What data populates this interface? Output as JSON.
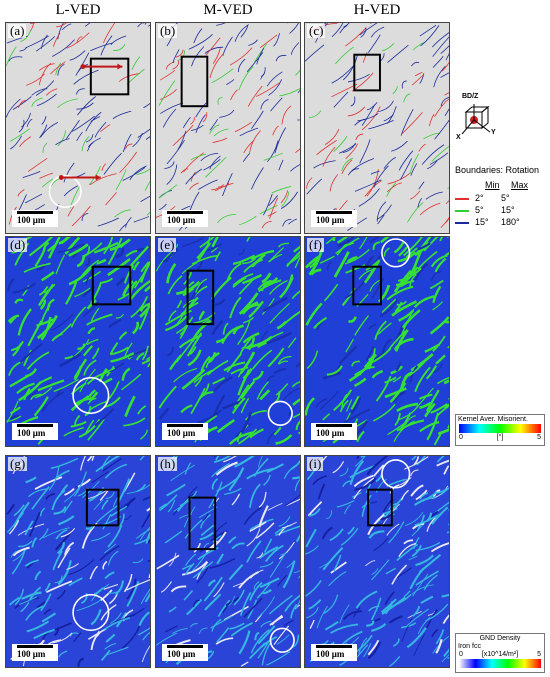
{
  "columns": [
    "L-VED",
    "M-VED",
    "H-VED"
  ],
  "rows": [
    {
      "type": "boundaries",
      "labels": [
        "(a)",
        "(b)",
        "(c)"
      ]
    },
    {
      "type": "kam",
      "labels": [
        "(d)",
        "(e)",
        "(f)"
      ]
    },
    {
      "type": "gnd",
      "labels": [
        "(g)",
        "(h)",
        "(i)"
      ]
    }
  ],
  "scale_bar": "100 μm",
  "axes": {
    "bd": "BD/Z",
    "x": "X",
    "y": "Y"
  },
  "boundaries_legend": {
    "title": "Boundaries: Rotation",
    "min_label": "Min",
    "max_label": "Max",
    "rows": [
      {
        "color": "#e03030",
        "min": "2°",
        "max": "5°"
      },
      {
        "color": "#33cc33",
        "min": "5°",
        "max": "15°"
      },
      {
        "color": "#1a2a9a",
        "min": "15°",
        "max": "180°"
      }
    ]
  },
  "kam_legend": {
    "title": "Kernel Aver. Misorient.",
    "unit": "[°]",
    "min": "0",
    "max": "5"
  },
  "gnd_legend": {
    "title": "GND Density",
    "phase": "Iron fcc",
    "unit": "[x10^14/m²]",
    "min": "0",
    "max": "5"
  },
  "colors": {
    "kam_bg": "#1f3fd6",
    "kam_fg": "#35e035",
    "gnd_bg": "#2b44d8",
    "gnd_fg": "#35b8e0",
    "map_bg": "#dcdcdc"
  }
}
